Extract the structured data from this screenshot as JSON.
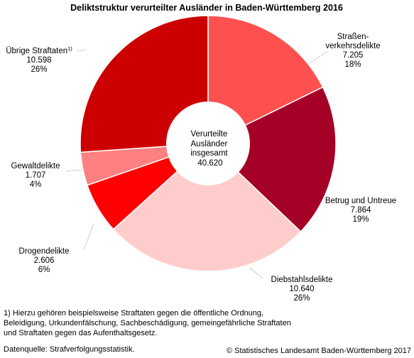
{
  "chart_data": {
    "type": "pie",
    "variant": "donut",
    "title": "Deliktstruktur verurteilter Ausländer in Baden-Württemberg 2016",
    "center_label": [
      "Verurteilte",
      "Ausländer",
      "insgesamt",
      "40.620"
    ],
    "total": 40620,
    "slices": [
      {
        "label": [
          "Straßen-",
          "verkehrsdelikte"
        ],
        "value": 7205,
        "value_text": "7.205",
        "percent_text": "18%",
        "color": "#ff5050"
      },
      {
        "label": [
          "Betrug und Untreue"
        ],
        "value": 7864,
        "value_text": "7.864",
        "percent_text": "19%",
        "color": "#a50026"
      },
      {
        "label": [
          "Diebstahlsdelikte"
        ],
        "value": 10640,
        "value_text": "10.640",
        "percent_text": "26%",
        "color": "#ffcccc"
      },
      {
        "label": [
          "Drogendelikte"
        ],
        "value": 2606,
        "value_text": "2.606",
        "percent_text": "6%",
        "color": "#ff0000"
      },
      {
        "label": [
          "Gewaltdelikte"
        ],
        "value": 1707,
        "value_text": "1.707",
        "percent_text": "4%",
        "color": "#ff8080"
      },
      {
        "label": [
          "Übrige Straftaten"
        ],
        "footnote_mark": "1)",
        "value": 10598,
        "value_text": "10.598",
        "percent_text": "26%",
        "color": "#cc0000"
      }
    ],
    "start_angle_deg": 0,
    "direction": "clockwise",
    "legend": "none"
  },
  "footnote": [
    "1) Hierzu gehören beispielsweise Straftaten gegen die öffentliche Ordnung,",
    "Beleidigung, Urkundenfälschung, Sachbeschädigung, gemeingefährliche Straftaten",
    "und Straftaten gegen das Aufenthaltsgesetz."
  ],
  "source": "Datenquelle: Strafverfolgungsstatistik.",
  "copyright": "© Statistisches Landesamt Baden-Württemberg 2017"
}
